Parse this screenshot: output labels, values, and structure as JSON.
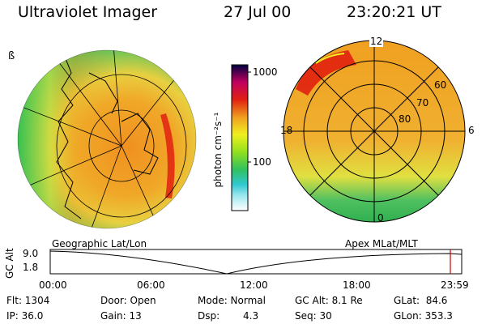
{
  "header": {
    "instrument": "Ultraviolet Imager",
    "date": "27 Jul 00",
    "time": "23:20:21 UT"
  },
  "colorbar": {
    "label": "photon cm⁻²s⁻¹",
    "ticks": [
      "1000",
      "100"
    ]
  },
  "left_panel": {
    "label": "Geographic Lat/Lon",
    "scale_glyph": "ß"
  },
  "right_panel": {
    "label": "Apex MLat/MLT",
    "mlt_labels": {
      "top": "12",
      "left": "18",
      "right": "6",
      "bottom": "0"
    },
    "lat_labels": [
      "60",
      "70",
      "80"
    ]
  },
  "timeline": {
    "ylabel": "GC Alt",
    "ymax": "9.0",
    "ymin": "1.8",
    "times": [
      "00:00",
      "06:00",
      "12:00",
      "18:00",
      "23:59"
    ],
    "current_marker_color": "#cc0000"
  },
  "stats": {
    "flt": "Flt: 1304",
    "ip": "IP: 36.0",
    "door": "Door: Open",
    "gain": "Gain: 13",
    "mode": "Mode: Normal",
    "dsp_label": "Dsp:",
    "dsp_value": "4.3",
    "gc_alt": "GC Alt: 8.1 Re",
    "seq": "Seq: 30",
    "glat": "GLat:  84.6",
    "glon": "GLon: 353.3"
  },
  "colors": {
    "aurora_orange": "#f0a020",
    "aurora_red": "#e02010",
    "aurora_yellow": "#e8e040",
    "aurora_green": "#40c040"
  }
}
